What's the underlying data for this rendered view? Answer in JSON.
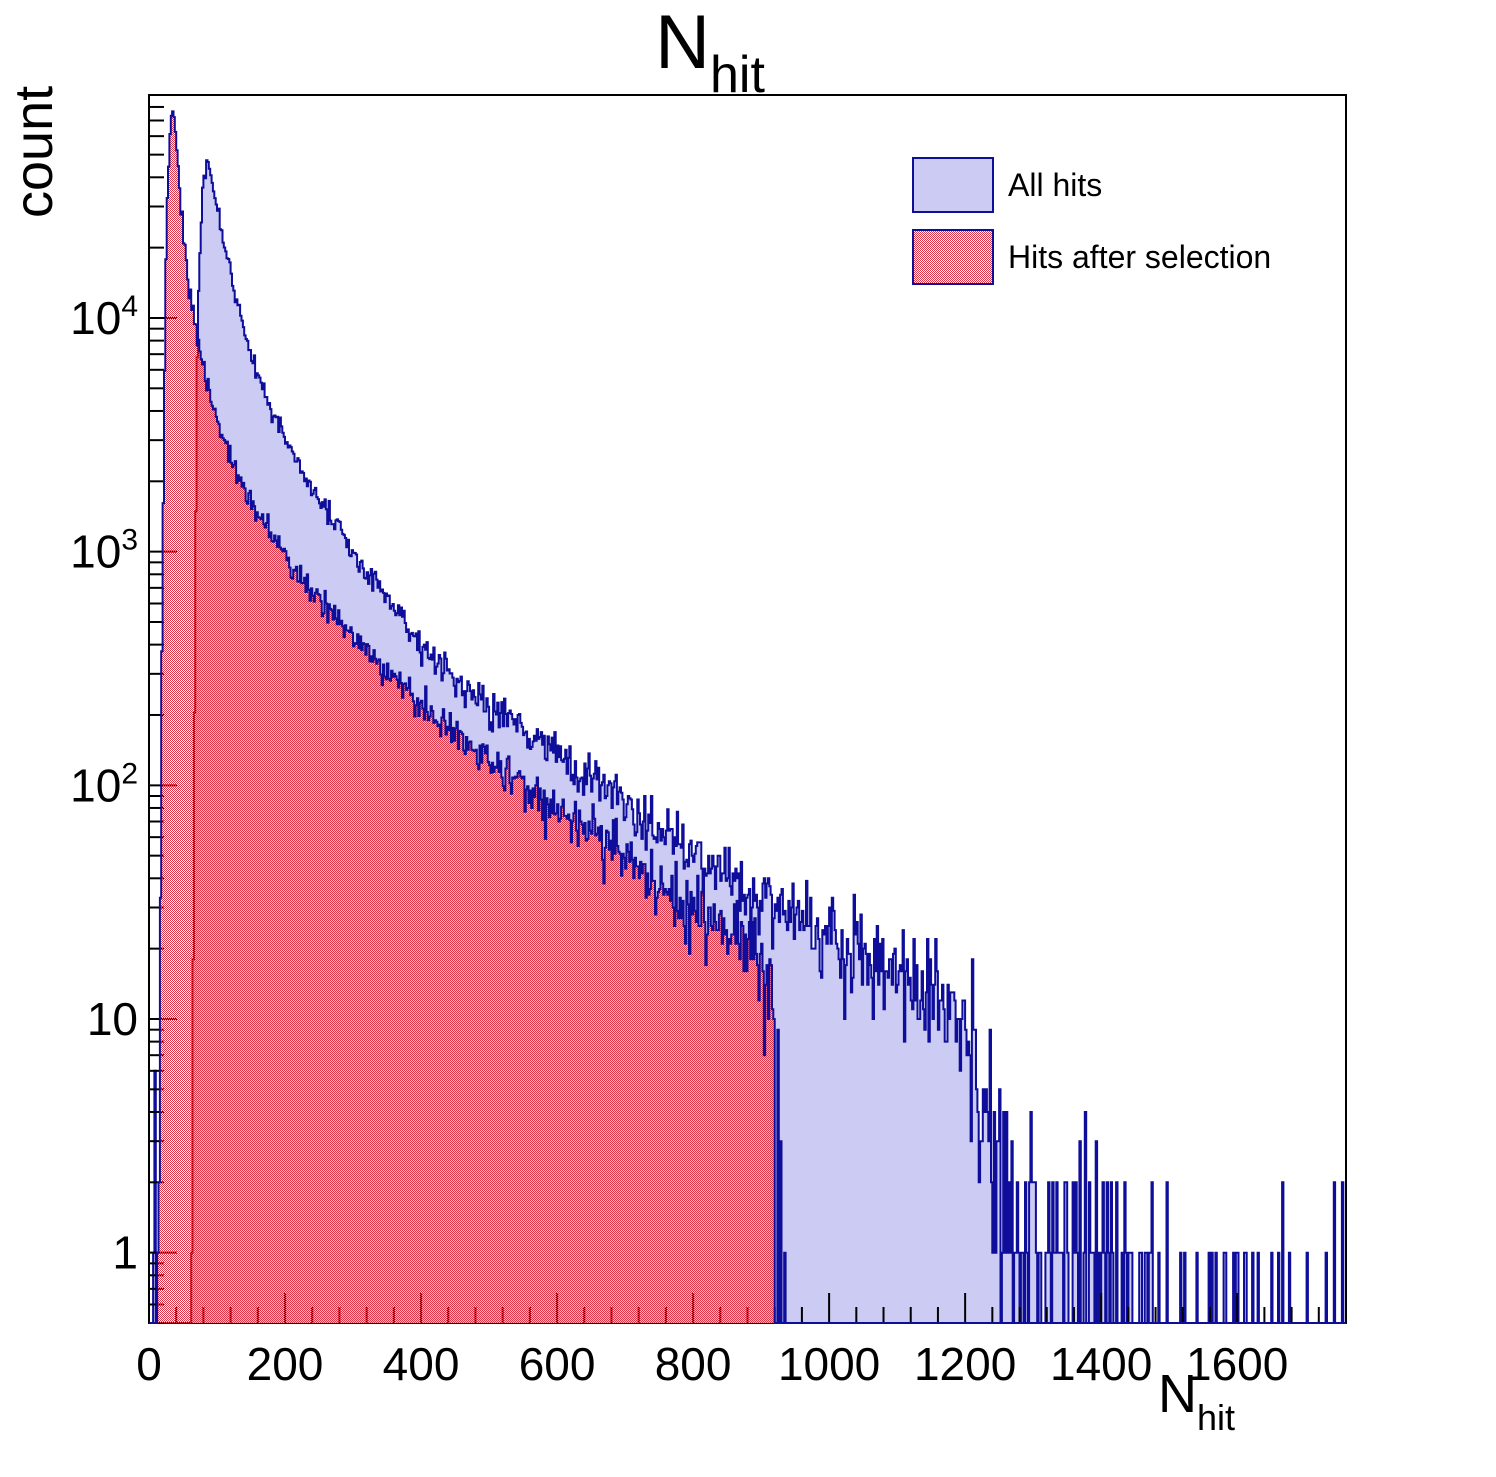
{
  "figure": {
    "title": {
      "main": "N",
      "sub": "hit"
    }
  },
  "axes": {
    "x": {
      "title_main": "N",
      "title_sub": "hit",
      "min": 0,
      "max": 1760,
      "major_step": 200,
      "minor_step": 40,
      "ticks": [
        {
          "value": 0,
          "label": "0"
        },
        {
          "value": 200,
          "label": "200"
        },
        {
          "value": 400,
          "label": "400"
        },
        {
          "value": 600,
          "label": "600"
        },
        {
          "value": 800,
          "label": "800"
        },
        {
          "value": 1000,
          "label": "1000"
        },
        {
          "value": 1200,
          "label": "1200"
        },
        {
          "value": 1400,
          "label": "1400"
        },
        {
          "value": 1600,
          "label": "1600"
        }
      ]
    },
    "y": {
      "title": "count",
      "scale": "log",
      "min": 0.5,
      "max": 90000,
      "ticks": [
        {
          "value": 1,
          "base": "1",
          "exp": ""
        },
        {
          "value": 10,
          "base": "10",
          "exp": ""
        },
        {
          "value": 100,
          "base": "10",
          "exp": "2"
        },
        {
          "value": 1000,
          "base": "10",
          "exp": "3"
        },
        {
          "value": 10000,
          "base": "10",
          "exp": "4"
        }
      ]
    }
  },
  "legend": {
    "items": [
      {
        "label": "All hits",
        "swatch": "solid-lavender"
      },
      {
        "label": "Hits after selection",
        "swatch": "red-hatch"
      }
    ]
  },
  "colors": {
    "hist_line": "#0e0e9a",
    "all_hits_fill": "#cbcbf3",
    "hatch_red": "#df3448",
    "axis": "#000000",
    "text": "#000000"
  },
  "chart_data": {
    "type": "histogram-overlay",
    "title": "N_hit",
    "xlabel": "N_hit",
    "ylabel": "count",
    "x_range": [
      0,
      1760
    ],
    "bin_width": 2,
    "y_scale": "log",
    "y_range": [
      0.5,
      90000
    ],
    "grid": false,
    "legend_position": "top-right",
    "series": [
      {
        "name": "All hits",
        "style": "solid",
        "fill": "#cbcbf3",
        "line": "#0e0e9a",
        "anchors": [
          [
            6,
            1
          ],
          [
            9,
            5
          ],
          [
            11,
            2
          ],
          [
            12,
            0.01
          ],
          [
            61,
            0.01
          ],
          [
            63,
            1
          ],
          [
            65,
            20
          ],
          [
            67,
            200
          ],
          [
            69,
            1500
          ],
          [
            71,
            7000
          ],
          [
            74,
            18000
          ],
          [
            78,
            32000
          ],
          [
            83,
            45500
          ],
          [
            89,
            42000
          ],
          [
            97,
            33000
          ],
          [
            107,
            24000
          ],
          [
            118,
            16500
          ],
          [
            130,
            11500
          ],
          [
            145,
            7800
          ],
          [
            160,
            5800
          ],
          [
            180,
            4100
          ],
          [
            200,
            3100
          ],
          [
            230,
            2100
          ],
          [
            260,
            1500
          ],
          [
            300,
            980
          ],
          [
            350,
            640
          ],
          [
            400,
            400
          ],
          [
            450,
            290
          ],
          [
            500,
            215
          ],
          [
            550,
            175
          ],
          [
            600,
            140
          ],
          [
            650,
            108
          ],
          [
            700,
            84
          ],
          [
            750,
            65
          ],
          [
            800,
            52
          ],
          [
            850,
            42
          ],
          [
            900,
            34
          ],
          [
            950,
            27
          ],
          [
            1000,
            22
          ],
          [
            1060,
            18
          ],
          [
            1120,
            15
          ],
          [
            1180,
            12
          ],
          [
            1215,
            8
          ],
          [
            1225,
            4
          ],
          [
            1245,
            2.2
          ],
          [
            1265,
            1.4
          ],
          [
            1300,
            1.1
          ],
          [
            1360,
            1.3
          ],
          [
            1400,
            0.8
          ],
          [
            1450,
            0.45
          ],
          [
            1500,
            0.32
          ],
          [
            1560,
            0.25
          ],
          [
            1620,
            0.2
          ],
          [
            1700,
            0.18
          ],
          [
            1755,
            0.25
          ]
        ]
      },
      {
        "name": "Hits after selection",
        "style": "hatched",
        "hatch": "#df3448",
        "line": "#0e0e9a",
        "cutoff": 920,
        "tail_spikes": [
          [
            924,
            9
          ],
          [
            928,
            3
          ],
          [
            934,
            1
          ]
        ],
        "anchors": [
          [
            13,
            0.8
          ],
          [
            15,
            5
          ],
          [
            17,
            60
          ],
          [
            19,
            400
          ],
          [
            22,
            3500
          ],
          [
            25,
            16000
          ],
          [
            28,
            42000
          ],
          [
            31,
            66000
          ],
          [
            34,
            76000
          ],
          [
            37,
            70000
          ],
          [
            41,
            52000
          ],
          [
            46,
            33000
          ],
          [
            52,
            20000
          ],
          [
            60,
            12500
          ],
          [
            70,
            8200
          ],
          [
            82,
            5600
          ],
          [
            95,
            4100
          ],
          [
            110,
            3000
          ],
          [
            125,
            2300
          ],
          [
            145,
            1750
          ],
          [
            165,
            1380
          ],
          [
            185,
            1120
          ],
          [
            205,
            930
          ],
          [
            230,
            750
          ],
          [
            260,
            590
          ],
          [
            300,
            430
          ],
          [
            350,
            300
          ],
          [
            400,
            225
          ],
          [
            450,
            165
          ],
          [
            500,
            125
          ],
          [
            550,
            100
          ],
          [
            600,
            80
          ],
          [
            650,
            62
          ],
          [
            700,
            48
          ],
          [
            750,
            37
          ],
          [
            800,
            29
          ],
          [
            850,
            23
          ],
          [
            900,
            18
          ],
          [
            915,
            13
          ],
          [
            919,
            10
          ]
        ]
      }
    ]
  }
}
